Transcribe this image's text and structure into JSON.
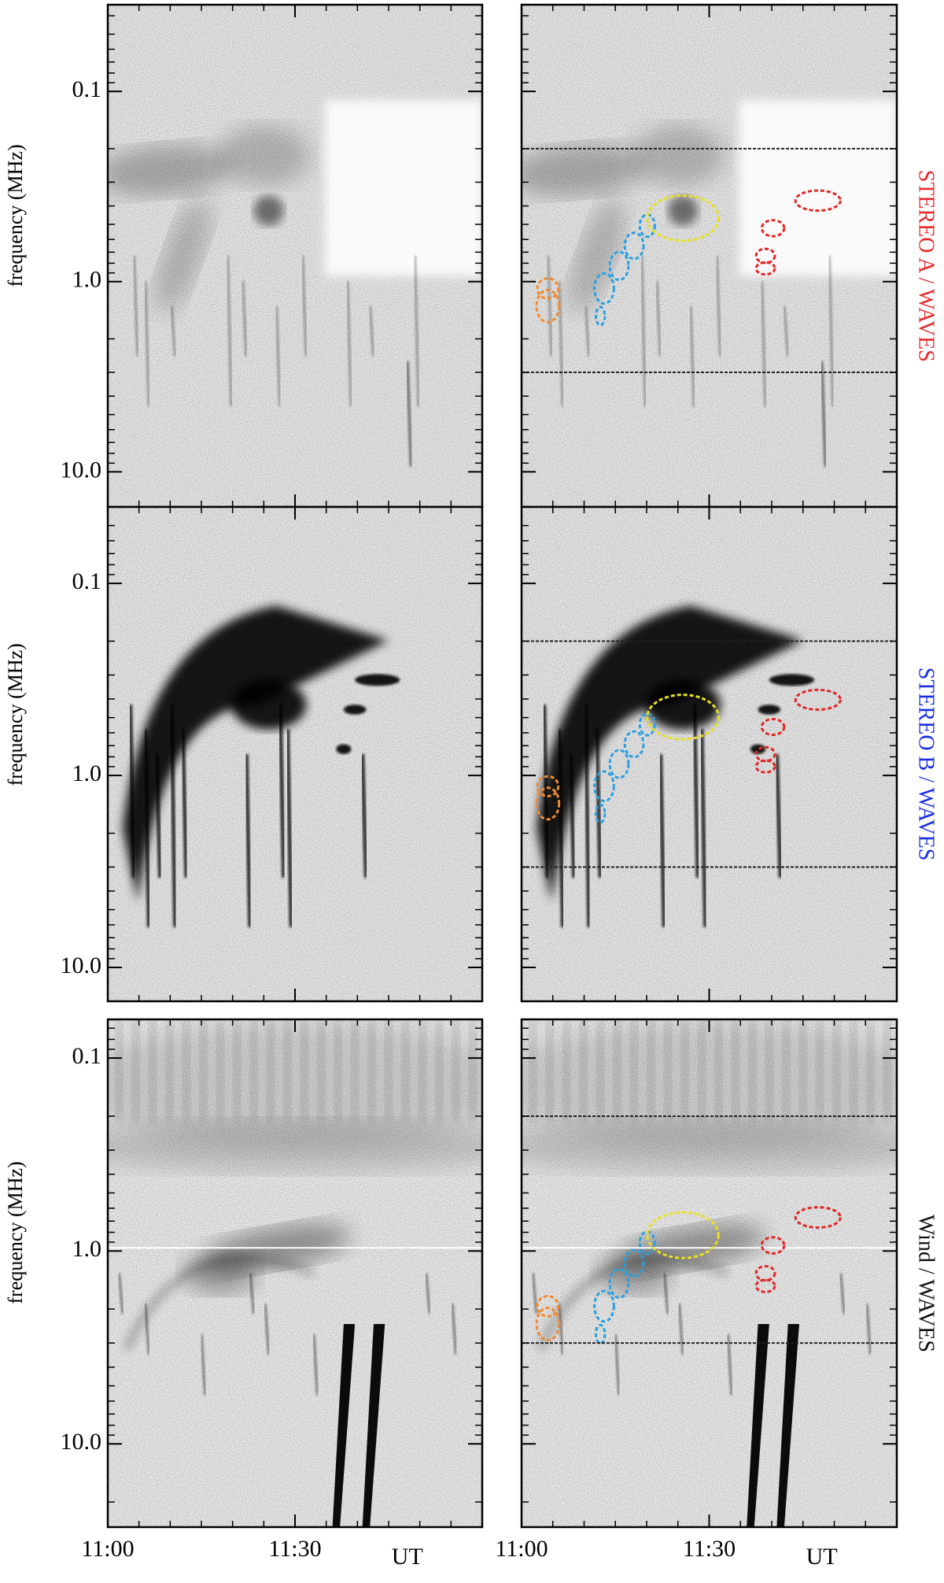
{
  "chart_data": [
    {
      "type": "spectrogram",
      "instrument": "STEREO A / WAVES",
      "color": "#e52a2a",
      "ylabel": "frequency (MHz)",
      "log": true,
      "ylim": [
        0.035,
        15.3
      ],
      "yticks": [
        0.1,
        {
          "value": 1,
          "label": "1.0"
        },
        {
          "value": 10,
          "label": "10.0"
        }
      ],
      "band": [
        0.2,
        3
      ]
    },
    {
      "type": "spectrogram",
      "instrument": "STEREO B / WAVES",
      "color": "#1a2fe0",
      "ylabel": "frequency (MHz)",
      "log": true,
      "ylim": [
        0.04,
        15
      ],
      "yticks": [
        0.1,
        {
          "value": 1,
          "label": "1.0"
        },
        {
          "value": 10,
          "label": "10.0"
        }
      ],
      "band": [
        0.2,
        3
      ]
    },
    {
      "type": "spectrogram",
      "instrument": "Wind / WAVES",
      "color": "#111111",
      "ylabel": "frequency (MHz)",
      "log": true,
      "ylim": [
        0.063,
        27
      ],
      "yticks": [
        0.1,
        {
          "value": 1,
          "label": "1.0"
        },
        {
          "value": 10,
          "label": "10.0"
        }
      ],
      "band": [
        0.2,
        3
      ]
    }
  ],
  "x_axis": {
    "xlim": [
      0,
      60
    ],
    "xticks": [
      {
        "value": 0,
        "label": "11:00"
      },
      {
        "value": 30,
        "label": "11:30"
      }
    ],
    "xlabel": "UT"
  }
}
